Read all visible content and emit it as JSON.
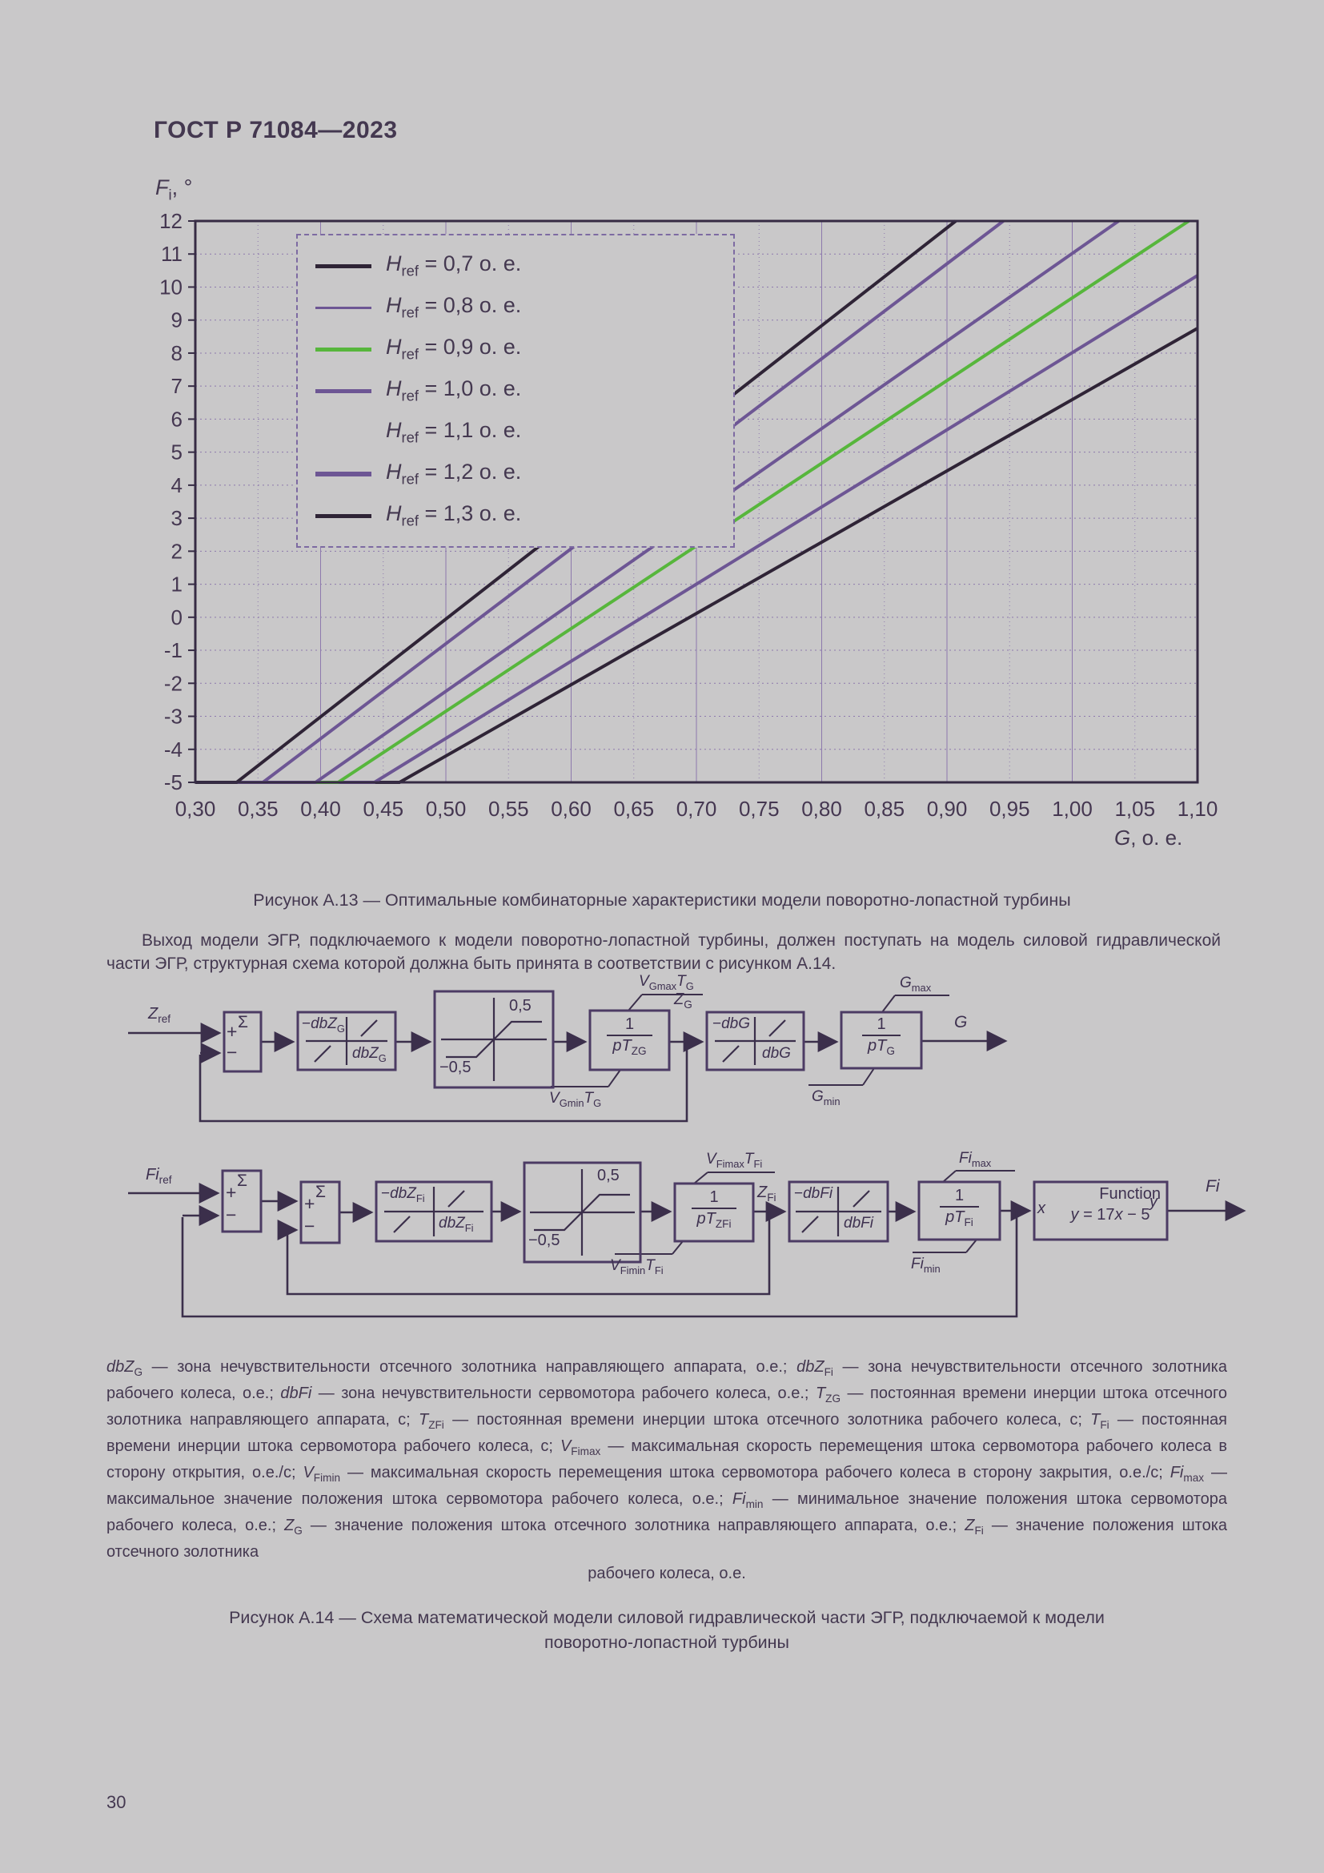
{
  "page": {
    "header": "ГОСТ Р 71084—2023",
    "page_number": "30",
    "background_color": "#c9c8c9",
    "text_color": "#443850"
  },
  "chart_data": {
    "type": "line",
    "title": "",
    "xlabel": "G, о. е.",
    "xlabel_rich": "*G*, о. е.",
    "ylabel": "Fi, °",
    "ylabel_rich": "*F*_{i}, °",
    "xlim": [
      0.3,
      1.1
    ],
    "ylim": [
      -5,
      12
    ],
    "xtick_step": 0.05,
    "ytick_step": 1,
    "grid": true,
    "grid_color": "#8d79ad",
    "frame_color": "#362b44",
    "text_color": "#453751",
    "legend_position": "upper-left",
    "legend": [
      {
        "label": "Href = 0,7 о. е.",
        "label_rich": "*H*_{ref} = 0,7 о. е.",
        "color": "#2f2436",
        "weight": 5
      },
      {
        "label": "Href = 0,8 о. е.",
        "label_rich": "*H*_{ref} = 0,8 о. е.",
        "color": "#6d5694",
        "weight": 3
      },
      {
        "label": "Href = 0,9 о. е.",
        "label_rich": "*H*_{ref} = 0,9 о. е.",
        "color": "#57b63c",
        "weight": 5
      },
      {
        "label": "Href = 1,0 о. е.",
        "label_rich": "*H*_{ref} = 1,0 о. е.",
        "color": "#6d5694",
        "weight": 5
      },
      {
        "label": "Href = 1,1 о. е.",
        "label_rich": "*H*_{ref} = 1,1 о. е.",
        "color": null,
        "weight": 0
      },
      {
        "label": "Href = 1,2 о. е.",
        "label_rich": "*H*_{ref} = 1,2 о. е.",
        "color": "#6d5694",
        "weight": 6
      },
      {
        "label": "Href = 1,3 о. е.",
        "label_rich": "*H*_{ref} = 1,3 о. е.",
        "color": "#2f2436",
        "weight": 5
      }
    ],
    "series": [
      {
        "legend": "Href = 0,7 о. е.",
        "color": "#2f2436",
        "width": 4,
        "points": [
          [
            0.3,
            -5
          ],
          [
            0.333,
            -5
          ],
          [
            0.907,
            12
          ]
        ]
      },
      {
        "legend": "Href = 0,8 о. е.",
        "color": "#6d5694",
        "width": 4,
        "points": [
          [
            0.3,
            -5
          ],
          [
            0.354,
            -5
          ],
          [
            0.945,
            12
          ]
        ]
      },
      {
        "legend": "Href = 1,0 о. е.",
        "color": "#6d5694",
        "width": 4,
        "points": [
          [
            0.3,
            -5
          ],
          [
            0.396,
            -5
          ],
          [
            1.037,
            12
          ]
        ]
      },
      {
        "legend": "Href = 0,9 о. е.",
        "color": "#57b63c",
        "width": 4,
        "points": [
          [
            0.3,
            -5
          ],
          [
            0.414,
            -5
          ],
          [
            1.093,
            12
          ]
        ]
      },
      {
        "legend": "Href = 1,2 о. е.",
        "color": "#6d5694",
        "width": 4,
        "points": [
          [
            0.3,
            -5
          ],
          [
            0.443,
            -5
          ],
          [
            1.1,
            10.35
          ]
        ]
      },
      {
        "legend": "Href = 1,3 о. е.",
        "color": "#2f2436",
        "width": 4,
        "points": [
          [
            0.3,
            -5
          ],
          [
            0.463,
            -5
          ],
          [
            1.1,
            8.75
          ]
        ]
      }
    ]
  },
  "figure13_caption": "Рисунок А.13 — Оптимальные комбинаторные характеристики модели поворотно-лопастной турбины",
  "paragraph": "Выход модели ЭГР, подключаемого к модели поворотно-лопастной турбины, должен поступать на модель силовой гидравлической части ЭГР, структурная схема которой должна быть принята в соответствии с рисунком А.14.",
  "diagram1": {
    "labels": {
      "zref": "*Z*_{ref}",
      "sigma": "Σ",
      "plus": "+",
      "minus": "−",
      "db_left": "−*dbZ*_{G}",
      "db_right": "*dbZ*_{G}",
      "sat_top": "0,5",
      "sat_bottom": "−0,5",
      "int_num": "1",
      "int_den": "*pT*_{ZG}",
      "lim_top": "*V*_{Gmax}*T*_{G}",
      "lim_bottom": "*V*_{Gmin}*T*_{G}",
      "zg": "*Z*_{G}",
      "db2_left": "−*dbG*",
      "db2_right": "*dbG*",
      "int2_num": "1",
      "int2_den": "*pT*_{G}",
      "lim2_top": "*G*_{max}",
      "lim2_bottom": "*G*_{min}",
      "g_out": "*G*"
    }
  },
  "diagram2": {
    "labels": {
      "firef": "*Fi*_{ref}",
      "sigma1": "Σ",
      "plus1": "+",
      "minus1": "−",
      "sigma2": "Σ",
      "plus2": "+",
      "minus2": "−",
      "db_left": "−*dbZ*_{Fi}",
      "db_right": "*dbZ*_{Fi}",
      "sat_top": "0,5",
      "sat_bottom": "−0,5",
      "int_num": "1",
      "int_den": "*pT*_{ZFi}",
      "lim_top": "*V*_{Fimax}*T*_{Fi}",
      "lim_bottom": "*V*_{Fimin}*T*_{Fi}",
      "zfi": "*Z*_{Fi}",
      "db2_left": "−*dbFi*",
      "db2_right": "*dbFi*",
      "int2_num": "1",
      "int2_den": "*pT*_{Fi}",
      "lim2_top": "*Fi*_{max}",
      "lim2_bottom": "*Fi*_{min}",
      "func_title": "Function",
      "func_eq": "*y* = 17*x* − 5",
      "func_x": "*x*",
      "func_y": "*y*",
      "fi_out": "*Fi*"
    }
  },
  "definitions": {
    "justified": "*dbZ*_{G} — зона нечувствительности отсечного золотника направляющего аппарата, о.е.; *dbZ*_{Fi} — зона нечувствительности отсечного золотника рабочего колеса, о.е.; *dbFi* — зона нечувствительности сервомотора рабочего колеса, о.е.; *T*_{ZG} — постоянная времени инерции штока отсечного золотника направляющего аппарата, с; *T*_{ZFi} — постоянная времени инерции штока отсечного золотника рабочего колеса, с; *T*_{Fi} — постоянная времени инерции штока сервомотора рабочего колеса, с; *V*_{Fimax} — максимальная скорость перемещения штока сервомотора рабочего колеса в сторону открытия, о.е./с; *V*_{Fimin} — максимальная скорость перемещения штока сервомотора рабочего колеса в сторону закрытия, о.е./с; *Fi*_{max} — максимальное значение положения штока сервомотора рабочего колеса, о.е.; *Fi*_{min} — минимальное значение положения штока сервомотора рабочего колеса, о.е.; *Z*_{G} — значение положения штока отсечного золотника направляющего аппарата, о.е.; *Z*_{Fi} — значение положения штока отсечного золотника",
    "centered_tail": "рабочего колеса, о.е."
  },
  "figure14_caption": "Рисунок А.14 — Схема математической модели силовой гидравлической части ЭГР, подключаемой к модели поворотно-лопастной турбины"
}
